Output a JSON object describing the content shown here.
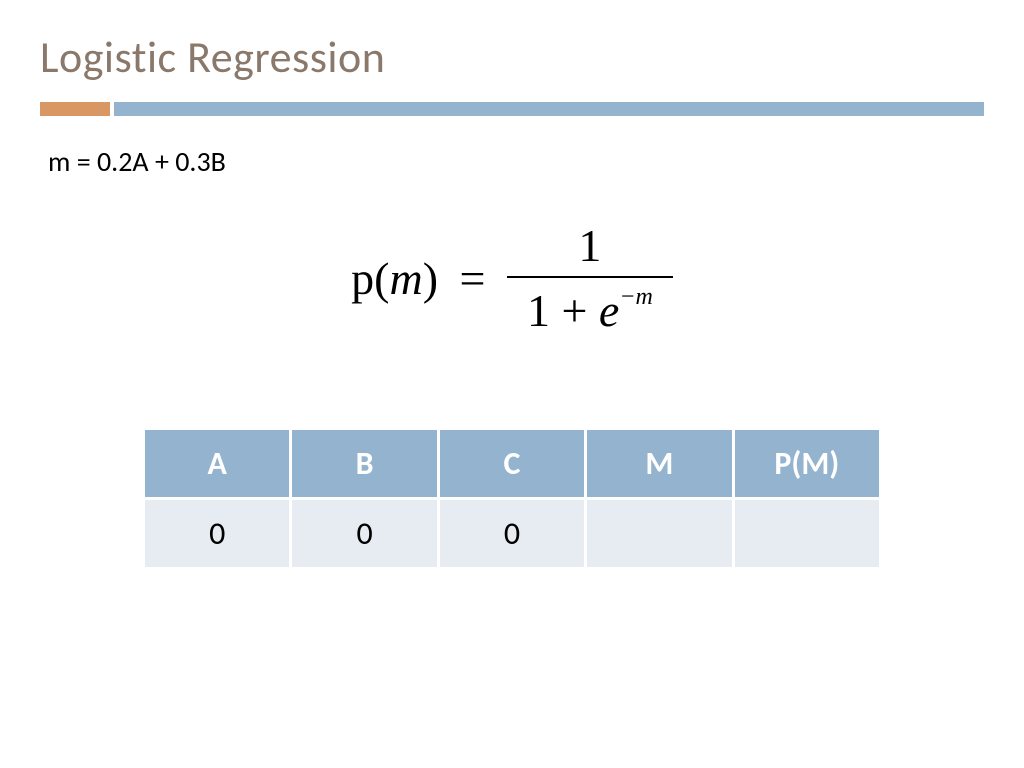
{
  "colors": {
    "title": "#8a786a",
    "accent_orange": "#d89763",
    "accent_blue": "#94b3ce",
    "header_bg": "#94b3ce",
    "header_text": "#ffffff",
    "row_bg": "#e6ecf2",
    "text": "#000000"
  },
  "slide": {
    "title": "Logistic Regression",
    "equation": "m = 0.2A + 0.3B"
  },
  "formula": {
    "lhs_p": "p(",
    "lhs_m": "m",
    "lhs_close": ")",
    "equals": "=",
    "numerator": "1",
    "denom_prefix": "1 + ",
    "denom_e": "e",
    "denom_exp": "−m"
  },
  "table": {
    "columns": [
      "A",
      "B",
      "C",
      "M",
      "P(M)"
    ],
    "rows": [
      [
        "0",
        "0",
        "0",
        "",
        ""
      ]
    ],
    "header_fontsize": 32,
    "cell_fontsize": 32,
    "col_widths": [
      "20%",
      "20%",
      "20%",
      "20%",
      "20%"
    ]
  }
}
